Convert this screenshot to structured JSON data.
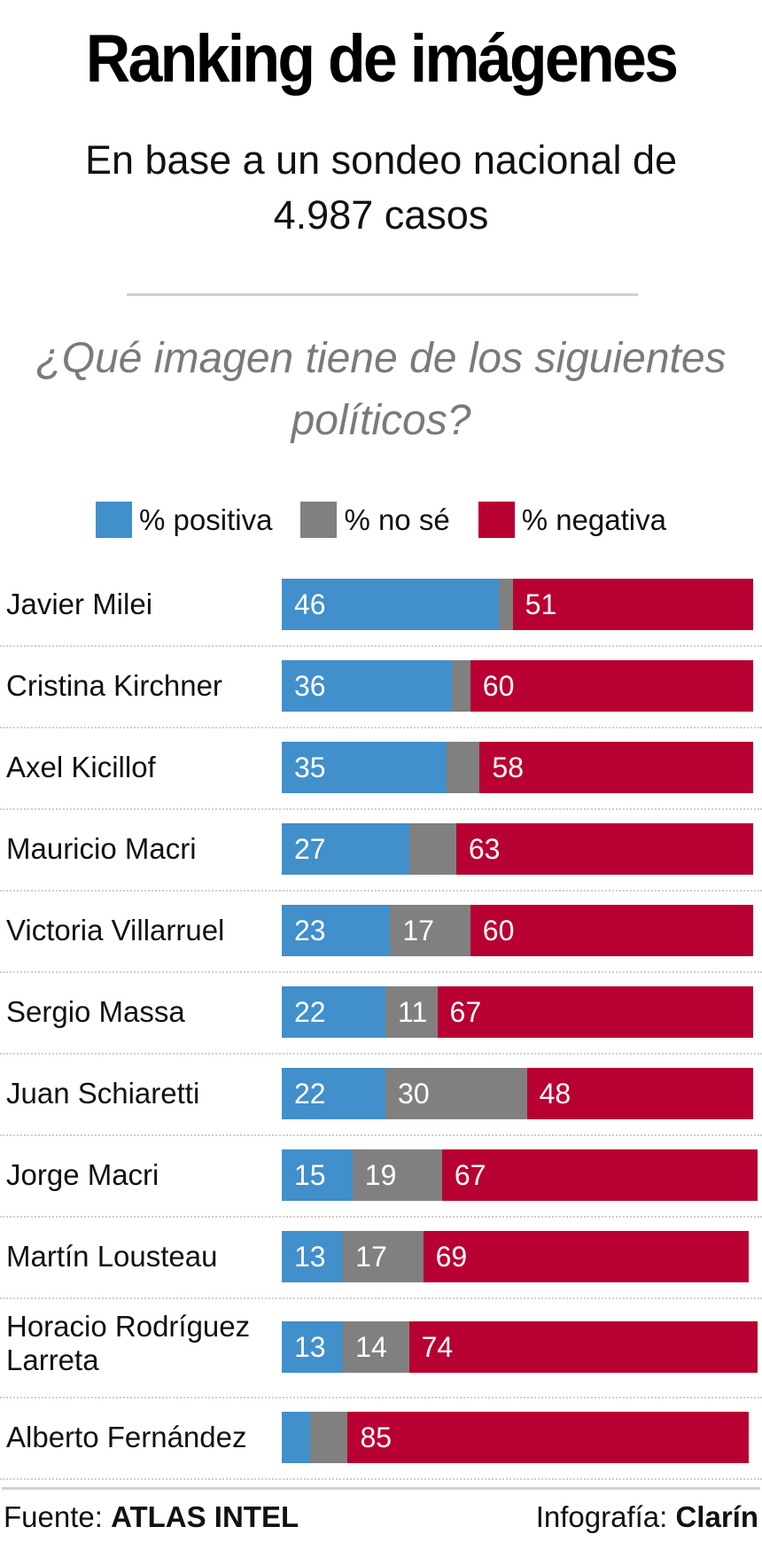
{
  "header": {
    "title": "Ranking de imágenes",
    "subtitle": "En base a un sondeo nacional de 4.987 casos",
    "question": "¿Qué imagen tiene de los siguientes políticos?"
  },
  "legend": [
    {
      "label": "% positiva",
      "color": "#418fcb"
    },
    {
      "label": "% no sé",
      "color": "#808080"
    },
    {
      "label": "% negativa",
      "color": "#b80032"
    }
  ],
  "footer": {
    "source_prefix": "Fuente: ",
    "source_name": "ATLAS INTEL",
    "credit_prefix": "Infografía: ",
    "credit_name": "Clarín"
  },
  "chart_data": {
    "type": "bar",
    "orientation": "horizontal-stacked",
    "title": "Ranking de imágenes",
    "subtitle": "En base a un sondeo nacional de 4.987 casos",
    "question": "¿Qué imagen tiene de los siguientes políticos?",
    "xlabel": "",
    "ylabel": "",
    "xlim": [
      0,
      100
    ],
    "grid": false,
    "legend_position": "top-center",
    "categories": [
      "Javier Milei",
      "Cristina Kirchner",
      "Axel Kicillof",
      "Mauricio Macri",
      "Victoria Villarruel",
      "Sergio Massa",
      "Juan Schiaretti",
      "Jorge Macri",
      "Martín Lousteau",
      "Horacio Rodríguez Larreta",
      "Alberto Fernández"
    ],
    "series": [
      {
        "name": "% positiva",
        "color": "#418fcb",
        "values": [
          46,
          36,
          35,
          27,
          23,
          22,
          22,
          15,
          13,
          13,
          6
        ],
        "labeled": [
          true,
          true,
          true,
          true,
          true,
          true,
          true,
          true,
          true,
          true,
          false
        ]
      },
      {
        "name": "% no sé",
        "color": "#808080",
        "values": [
          3,
          4,
          7,
          10,
          17,
          11,
          30,
          19,
          17,
          14,
          8
        ],
        "labeled": [
          false,
          false,
          false,
          false,
          true,
          true,
          true,
          true,
          true,
          true,
          false
        ]
      },
      {
        "name": "% negativa",
        "color": "#b80032",
        "values": [
          51,
          60,
          58,
          63,
          60,
          67,
          48,
          67,
          69,
          74,
          85
        ],
        "labeled": [
          true,
          true,
          true,
          true,
          true,
          true,
          true,
          true,
          true,
          true,
          true
        ]
      }
    ]
  }
}
